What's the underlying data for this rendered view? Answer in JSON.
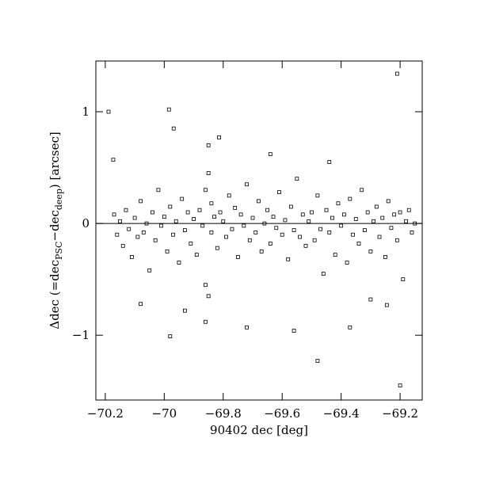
{
  "chart_data": {
    "type": "scatter",
    "x_label": "90402 dec [deg]",
    "y_label": {
      "lead": "Δdec (=dec",
      "sub1": "PSC",
      "mid": "−dec",
      "sub2": "deep",
      "tail": ") [arcsec]"
    },
    "xlim": [
      -70.232,
      -69.125
    ],
    "ylim": [
      -1.58,
      1.454
    ],
    "xticks": [
      {
        "value": -70.2,
        "label": "−70.2"
      },
      {
        "value": -70,
        "label": "−70"
      },
      {
        "value": -69.8,
        "label": "−69.8"
      },
      {
        "value": -69.6,
        "label": "−69.6"
      },
      {
        "value": -69.4,
        "label": "−69.4"
      },
      {
        "value": -69.2,
        "label": "−69.2"
      }
    ],
    "yticks": [
      {
        "value": -1,
        "label": "−1"
      },
      0,
      1
    ],
    "hline": 0,
    "color": "#000000",
    "x": [
      -70.17,
      -70.16,
      -70.15,
      -70.14,
      -70.13,
      -70.12,
      -70.11,
      -70.1,
      -70.09,
      -70.08,
      -70.07,
      -70.06,
      -70.05,
      -70.04,
      -70.03,
      -70.02,
      -70.01,
      -70.0,
      -69.99,
      -69.98,
      -69.97,
      -69.96,
      -69.95,
      -69.94,
      -69.93,
      -69.92,
      -69.91,
      -69.9,
      -69.89,
      -69.88,
      -69.87,
      -69.86,
      -69.86,
      -69.85,
      -69.85,
      -69.84,
      -69.84,
      -69.83,
      -69.82,
      -69.81,
      -69.8,
      -69.79,
      -69.78,
      -69.77,
      -69.76,
      -69.75,
      -69.74,
      -69.73,
      -69.72,
      -69.71,
      -69.7,
      -69.69,
      -69.68,
      -69.67,
      -69.66,
      -69.65,
      -69.64,
      -69.63,
      -69.62,
      -69.61,
      -69.6,
      -69.59,
      -69.58,
      -69.57,
      -69.56,
      -69.55,
      -69.54,
      -69.53,
      -69.52,
      -69.51,
      -69.5,
      -69.49,
      -69.48,
      -69.47,
      -69.46,
      -69.45,
      -69.44,
      -69.43,
      -69.42,
      -69.41,
      -69.4,
      -69.39,
      -69.38,
      -69.37,
      -69.36,
      -69.35,
      -69.34,
      -69.33,
      -69.32,
      -69.31,
      -69.3,
      -69.29,
      -69.28,
      -69.27,
      -69.26,
      -69.25,
      -69.24,
      -69.23,
      -69.22,
      -69.21,
      -69.2,
      -69.19,
      -69.18,
      -69.17,
      -69.16,
      -69.15,
      -70.173,
      -70.189,
      -69.984,
      -69.968,
      -69.814,
      -69.21,
      -69.2,
      -69.48,
      -69.98,
      -69.72,
      -69.56,
      -69.37,
      -69.245,
      -69.86,
      -69.85,
      -70.08,
      -69.93,
      -69.64,
      -69.44,
      -69.3
    ],
    "y": [
      0.08,
      -0.1,
      0.02,
      -0.2,
      0.12,
      -0.05,
      -0.3,
      0.05,
      -0.12,
      0.2,
      -0.08,
      0.0,
      -0.42,
      0.1,
      -0.15,
      0.3,
      -0.02,
      0.06,
      -0.25,
      0.15,
      -0.1,
      0.02,
      -0.35,
      0.22,
      -0.06,
      0.1,
      -0.18,
      0.04,
      -0.28,
      0.12,
      -0.02,
      0.3,
      -0.55,
      0.45,
      -0.65,
      0.18,
      -0.08,
      0.06,
      -0.22,
      0.1,
      0.02,
      -0.12,
      0.25,
      -0.05,
      0.14,
      -0.3,
      0.08,
      -0.02,
      0.35,
      -0.15,
      0.05,
      -0.08,
      0.2,
      -0.25,
      0.0,
      0.12,
      -0.18,
      0.06,
      -0.04,
      0.28,
      -0.1,
      0.03,
      -0.32,
      0.15,
      -0.06,
      0.4,
      -0.12,
      0.08,
      -0.2,
      0.02,
      0.1,
      -0.15,
      0.25,
      -0.05,
      -0.45,
      0.12,
      -0.08,
      0.05,
      -0.28,
      0.18,
      -0.02,
      0.08,
      -0.35,
      0.22,
      -0.1,
      0.04,
      -0.18,
      0.3,
      -0.06,
      0.1,
      -0.25,
      0.02,
      0.15,
      -0.12,
      0.05,
      -0.3,
      0.2,
      -0.04,
      0.08,
      -0.15,
      0.1,
      -0.5,
      0.02,
      0.12,
      -0.08,
      0.0,
      0.57,
      1.0,
      1.02,
      0.85,
      0.77,
      1.34,
      -1.45,
      -1.23,
      -1.01,
      -0.93,
      -0.96,
      -0.93,
      -0.73,
      -0.88,
      0.7,
      -0.72,
      -0.78,
      0.62,
      0.55,
      -0.68
    ]
  }
}
